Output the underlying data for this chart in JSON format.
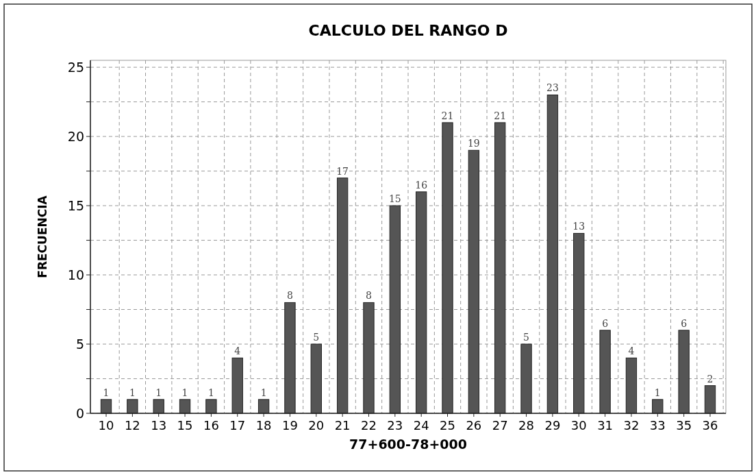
{
  "chart_data": {
    "type": "bar",
    "title": "CALCULO DEL  RANGO  D",
    "xlabel": "77+600-78+000",
    "ylabel": "FRECUENCIA",
    "categories": [
      "10",
      "12",
      "13",
      "15",
      "16",
      "17",
      "18",
      "19",
      "20",
      "21",
      "22",
      "23",
      "24",
      "25",
      "26",
      "27",
      "28",
      "29",
      "30",
      "31",
      "32",
      "33",
      "35",
      "36"
    ],
    "values": [
      1,
      1,
      1,
      1,
      1,
      4,
      1,
      8,
      5,
      17,
      8,
      15,
      16,
      21,
      19,
      21,
      5,
      23,
      13,
      6,
      4,
      1,
      6,
      2
    ],
    "color": "#555555",
    "data_labels": true,
    "ylim": [
      0,
      25.5
    ],
    "yticks": [
      0,
      {
        "value": 2.5,
        "label": null
      },
      5,
      {
        "value": 7.5,
        "label": null
      },
      10,
      {
        "value": 12.5,
        "label": null
      },
      15,
      {
        "value": 17.5,
        "label": null
      },
      20,
      {
        "value": 22.5,
        "label": null
      },
      25
    ],
    "grid": true
  }
}
